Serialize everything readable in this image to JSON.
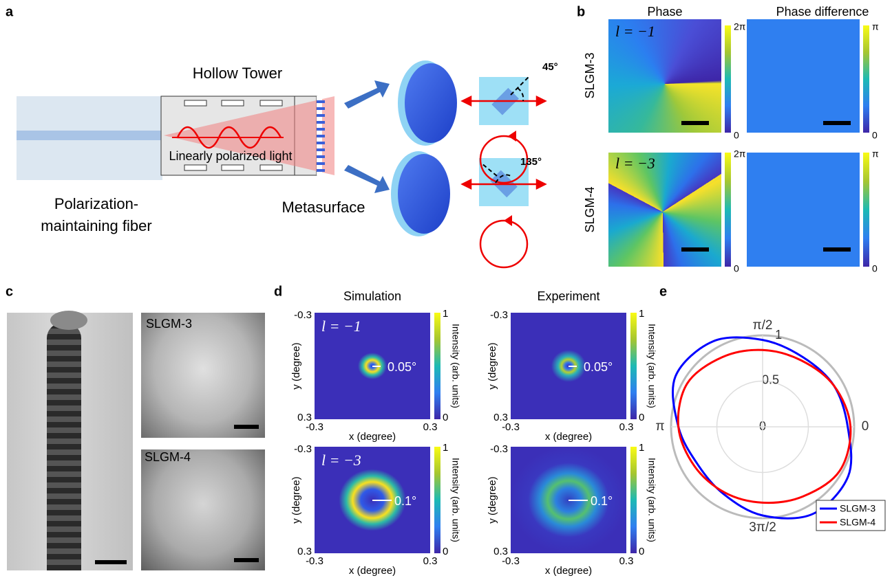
{
  "panel_labels": [
    "a",
    "b",
    "c",
    "d",
    "e"
  ],
  "panel_a": {
    "tower_label": "Hollow Tower",
    "light_label": "Linearly polarized light",
    "fiber_label": [
      "Polarization-",
      "maintaining fiber"
    ],
    "metasurface_label": "Metasurface",
    "angles": [
      "45°",
      "135°"
    ]
  },
  "panel_b": {
    "columns": [
      "Phase",
      "Phase difference"
    ],
    "rows": [
      {
        "name": "SLGM-3",
        "l": "l = −1",
        "phase_max": "2π",
        "diff_max": "π",
        "phase_min": "0",
        "diff_min": "0"
      },
      {
        "name": "SLGM-4",
        "l": "l = −3",
        "phase_max": "2π",
        "diff_max": "π",
        "phase_min": "0",
        "diff_min": "0"
      }
    ]
  },
  "panel_c": {
    "labels": [
      "SLGM-3",
      "SLGM-4"
    ]
  },
  "panel_d": {
    "columns": [
      "Simulation",
      "Experiment"
    ],
    "rows": [
      {
        "l": "l = −1",
        "ring": [
          "0.05°",
          "0.05°"
        ]
      },
      {
        "l": "l = −3",
        "ring": [
          "0.1°",
          "0.1°"
        ]
      }
    ],
    "x_label": "x (degree)",
    "y_label": "y (degree)",
    "tick_min": "-0.3",
    "tick_max": "0.3",
    "colorbar_label": "Intensity (arb. units)",
    "colorbar_max": "1",
    "colorbar_min": "0"
  },
  "chart_data": {
    "type": "polar",
    "theta": [
      0,
      30,
      60,
      90,
      120,
      150,
      180,
      210,
      240,
      270,
      300,
      330
    ],
    "rlim": [
      0,
      1
    ],
    "rticks": [
      0,
      0.5,
      1
    ],
    "thetaticks": [
      0,
      {
        "value": 90,
        "label": "π/2"
      },
      {
        "value": 180,
        "label": "π"
      },
      {
        "value": 270,
        "label": "3π/2"
      }
    ],
    "legend": "lower right",
    "series": [
      {
        "name": "SLGM-3",
        "color": "#0000ff",
        "values": [
          0.93,
          0.9,
          0.88,
          0.95,
          1.08,
          1.1,
          0.92,
          0.82,
          0.85,
          0.97,
          1.1,
          1.08
        ]
      },
      {
        "name": "SLGM-4",
        "color": "#ff0000",
        "values": [
          0.96,
          0.9,
          0.84,
          0.84,
          0.88,
          0.95,
          0.92,
          0.86,
          0.83,
          0.83,
          0.88,
          0.97
        ]
      }
    ]
  }
}
